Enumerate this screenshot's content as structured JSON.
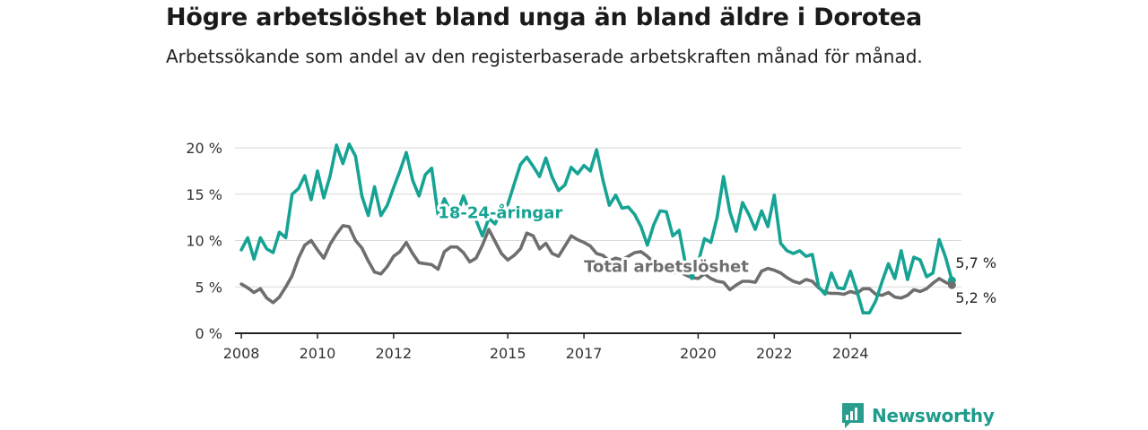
{
  "header": {
    "title": "Högre arbetslöshet bland unga än bland äldre i Dorotea",
    "subtitle": "Arbetssökande som andel av den registerbaserade arbetskraften månad för månad."
  },
  "brand": {
    "name": "Newsworthy",
    "logo_icon": "bar-chart-speech-bubble-icon",
    "color": "#2a9d8f"
  },
  "chart_data": {
    "type": "line",
    "title": "Högre arbetslöshet bland unga än bland äldre i Dorotea",
    "subtitle": "Arbetssökande som andel av den registerbaserade arbetskraften månad för månad.",
    "xlabel": "",
    "ylabel": "",
    "ylim": [
      0,
      20
    ],
    "x_ticks": [
      "2008",
      "2010",
      "2012",
      "2015",
      "2017",
      "2020",
      "2022",
      "2024"
    ],
    "y_ticks": [
      "0 %",
      "5 %",
      "10 %",
      "15 %",
      "20 %"
    ],
    "grid": "horizontal",
    "series": [
      {
        "name": "18-24-åringar",
        "color": "#16a394",
        "end_label": "5,7 %",
        "points": [
          [
            "2008-01",
            9
          ],
          [
            "2008-03",
            10.3
          ],
          [
            "2008-05",
            8
          ],
          [
            "2008-07",
            10.3
          ],
          [
            "2008-09",
            9.1
          ],
          [
            "2008-11",
            8.7
          ],
          [
            "2009-01",
            10.9
          ],
          [
            "2009-03",
            10.3
          ],
          [
            "2009-05",
            15
          ],
          [
            "2009-07",
            15.6
          ],
          [
            "2009-09",
            17
          ],
          [
            "2009-11",
            14.4
          ],
          [
            "2010-01",
            17.5
          ],
          [
            "2010-03",
            14.6
          ],
          [
            "2010-05",
            17
          ],
          [
            "2010-07",
            20.3
          ],
          [
            "2010-09",
            18.3
          ],
          [
            "2010-11",
            20.4
          ],
          [
            "2011-01",
            19.1
          ],
          [
            "2011-03",
            14.8
          ],
          [
            "2011-05",
            12.7
          ],
          [
            "2011-07",
            15.8
          ],
          [
            "2011-09",
            12.7
          ],
          [
            "2011-11",
            13.8
          ],
          [
            "2012-01",
            15.7
          ],
          [
            "2012-03",
            17.5
          ],
          [
            "2012-05",
            19.5
          ],
          [
            "2012-07",
            16.5
          ],
          [
            "2012-09",
            14.8
          ],
          [
            "2012-11",
            17.1
          ],
          [
            "2013-01",
            17.8
          ],
          [
            "2013-03",
            12.8
          ],
          [
            "2013-05",
            14.5
          ],
          [
            "2013-07",
            13.1
          ],
          [
            "2013-09",
            12.8
          ],
          [
            "2013-11",
            14.8
          ],
          [
            "2014-01",
            13
          ],
          [
            "2014-03",
            12.2
          ],
          [
            "2014-05",
            10.5
          ],
          [
            "2014-07",
            12.4
          ],
          [
            "2014-09",
            11.8
          ],
          [
            "2014-11",
            13.2
          ],
          [
            "2015-01",
            13.9
          ],
          [
            "2015-03",
            16.1
          ],
          [
            "2015-05",
            18.2
          ],
          [
            "2015-07",
            19
          ],
          [
            "2015-09",
            18
          ],
          [
            "2015-11",
            16.9
          ],
          [
            "2016-01",
            18.9
          ],
          [
            "2016-03",
            16.8
          ],
          [
            "2016-05",
            15.4
          ],
          [
            "2016-07",
            16
          ],
          [
            "2016-09",
            17.9
          ],
          [
            "2016-11",
            17.2
          ],
          [
            "2017-01",
            18.1
          ],
          [
            "2017-03",
            17.5
          ],
          [
            "2017-05",
            19.8
          ],
          [
            "2017-07",
            16.5
          ],
          [
            "2017-09",
            13.8
          ],
          [
            "2017-11",
            14.9
          ],
          [
            "2018-01",
            13.5
          ],
          [
            "2018-03",
            13.6
          ],
          [
            "2018-05",
            12.8
          ],
          [
            "2018-07",
            11.5
          ],
          [
            "2018-09",
            9.5
          ],
          [
            "2018-11",
            11.7
          ],
          [
            "2019-01",
            13.2
          ],
          [
            "2019-03",
            13.1
          ],
          [
            "2019-05",
            10.5
          ],
          [
            "2019-07",
            11.1
          ],
          [
            "2019-09",
            7.5
          ],
          [
            "2019-11",
            5.9
          ],
          [
            "2020-01",
            7.6
          ],
          [
            "2020-03",
            10.2
          ],
          [
            "2020-05",
            9.8
          ],
          [
            "2020-07",
            12.5
          ],
          [
            "2020-09",
            16.9
          ],
          [
            "2020-11",
            13.1
          ],
          [
            "2021-01",
            11
          ],
          [
            "2021-03",
            14.1
          ],
          [
            "2021-05",
            12.8
          ],
          [
            "2021-07",
            11.2
          ],
          [
            "2021-09",
            13.2
          ],
          [
            "2021-11",
            11.5
          ],
          [
            "2022-01",
            14.9
          ],
          [
            "2022-03",
            9.7
          ],
          [
            "2022-05",
            8.9
          ],
          [
            "2022-07",
            8.6
          ],
          [
            "2022-09",
            8.9
          ],
          [
            "2022-11",
            8.3
          ],
          [
            "2023-01",
            8.5
          ],
          [
            "2023-03",
            5
          ],
          [
            "2023-05",
            4.2
          ],
          [
            "2023-07",
            6.5
          ],
          [
            "2023-09",
            4.9
          ],
          [
            "2023-11",
            4.8
          ],
          [
            "2024-01",
            6.7
          ],
          [
            "2024-03",
            4.6
          ],
          [
            "2024-05",
            2.2
          ],
          [
            "2024-07",
            2.2
          ],
          [
            "2024-09",
            3.5
          ],
          [
            "2024-11",
            5.6
          ],
          [
            "2025-01",
            7.5
          ],
          [
            "2025-03",
            5.9
          ],
          [
            "2025-05",
            8.9
          ],
          [
            "2025-07",
            5.8
          ],
          [
            "2025-09",
            8.2
          ],
          [
            "2025-11",
            7.9
          ],
          [
            "2026-01",
            6.1
          ],
          [
            "2026-03",
            6.5
          ],
          [
            "2026-05",
            10.1
          ],
          [
            "2026-07",
            8.2
          ],
          [
            "2026-09",
            5.7
          ]
        ]
      },
      {
        "name": "Total arbetslöshet",
        "color": "#6e6e6e",
        "end_label": "5,2 %",
        "points": [
          [
            "2008-01",
            5.3
          ],
          [
            "2008-03",
            4.9
          ],
          [
            "2008-05",
            4.4
          ],
          [
            "2008-07",
            4.8
          ],
          [
            "2008-09",
            3.8
          ],
          [
            "2008-11",
            3.3
          ],
          [
            "2009-01",
            3.9
          ],
          [
            "2009-03",
            5
          ],
          [
            "2009-05",
            6.2
          ],
          [
            "2009-07",
            8.1
          ],
          [
            "2009-09",
            9.5
          ],
          [
            "2009-11",
            10
          ],
          [
            "2010-01",
            9
          ],
          [
            "2010-03",
            8.1
          ],
          [
            "2010-05",
            9.6
          ],
          [
            "2010-07",
            10.7
          ],
          [
            "2010-09",
            11.6
          ],
          [
            "2010-11",
            11.5
          ],
          [
            "2011-01",
            10
          ],
          [
            "2011-03",
            9.2
          ],
          [
            "2011-05",
            7.8
          ],
          [
            "2011-07",
            6.6
          ],
          [
            "2011-09",
            6.4
          ],
          [
            "2011-11",
            7.2
          ],
          [
            "2012-01",
            8.3
          ],
          [
            "2012-03",
            8.8
          ],
          [
            "2012-05",
            9.8
          ],
          [
            "2012-07",
            8.6
          ],
          [
            "2012-09",
            7.6
          ],
          [
            "2012-11",
            7.5
          ],
          [
            "2013-01",
            7.4
          ],
          [
            "2013-03",
            6.9
          ],
          [
            "2013-05",
            8.8
          ],
          [
            "2013-07",
            9.3
          ],
          [
            "2013-09",
            9.3
          ],
          [
            "2013-11",
            8.7
          ],
          [
            "2014-01",
            7.7
          ],
          [
            "2014-03",
            8.1
          ],
          [
            "2014-05",
            9.5
          ],
          [
            "2014-07",
            11.2
          ],
          [
            "2014-09",
            9.9
          ],
          [
            "2014-11",
            8.6
          ],
          [
            "2015-01",
            7.9
          ],
          [
            "2015-03",
            8.4
          ],
          [
            "2015-05",
            9.1
          ],
          [
            "2015-07",
            10.8
          ],
          [
            "2015-09",
            10.5
          ],
          [
            "2015-11",
            9.1
          ],
          [
            "2016-01",
            9.7
          ],
          [
            "2016-03",
            8.6
          ],
          [
            "2016-05",
            8.3
          ],
          [
            "2016-07",
            9.4
          ],
          [
            "2016-09",
            10.5
          ],
          [
            "2016-11",
            10.1
          ],
          [
            "2017-01",
            9.8
          ],
          [
            "2017-03",
            9.4
          ],
          [
            "2017-05",
            8.6
          ],
          [
            "2017-07",
            8.4
          ],
          [
            "2017-09",
            7.8
          ],
          [
            "2017-11",
            8.1
          ],
          [
            "2018-01",
            7.9
          ],
          [
            "2018-03",
            8.3
          ],
          [
            "2018-05",
            8.7
          ],
          [
            "2018-07",
            8.8
          ],
          [
            "2018-09",
            8.3
          ],
          [
            "2018-11",
            7.6
          ],
          [
            "2019-01",
            7.1
          ],
          [
            "2019-03",
            6.9
          ],
          [
            "2019-05",
            6.5
          ],
          [
            "2019-07",
            6.7
          ],
          [
            "2019-09",
            6.3
          ],
          [
            "2019-11",
            6
          ],
          [
            "2020-01",
            5.9
          ],
          [
            "2020-03",
            6.4
          ],
          [
            "2020-05",
            5.9
          ],
          [
            "2020-07",
            5.6
          ],
          [
            "2020-09",
            5.5
          ],
          [
            "2020-11",
            4.7
          ],
          [
            "2021-01",
            5.2
          ],
          [
            "2021-03",
            5.6
          ],
          [
            "2021-05",
            5.6
          ],
          [
            "2021-07",
            5.5
          ],
          [
            "2021-09",
            6.7
          ],
          [
            "2021-11",
            7
          ],
          [
            "2022-01",
            6.8
          ],
          [
            "2022-03",
            6.5
          ],
          [
            "2022-05",
            6
          ],
          [
            "2022-07",
            5.6
          ],
          [
            "2022-09",
            5.4
          ],
          [
            "2022-11",
            5.8
          ],
          [
            "2023-01",
            5.6
          ],
          [
            "2023-03",
            4.9
          ],
          [
            "2023-05",
            4.4
          ],
          [
            "2023-07",
            4.3
          ],
          [
            "2023-09",
            4.3
          ],
          [
            "2023-11",
            4.2
          ],
          [
            "2024-01",
            4.5
          ],
          [
            "2024-03",
            4.3
          ],
          [
            "2024-05",
            4.8
          ],
          [
            "2024-07",
            4.8
          ],
          [
            "2024-09",
            4.2
          ],
          [
            "2024-11",
            4.1
          ],
          [
            "2025-01",
            4.4
          ],
          [
            "2025-03",
            3.9
          ],
          [
            "2025-05",
            3.8
          ],
          [
            "2025-07",
            4.1
          ],
          [
            "2025-09",
            4.7
          ],
          [
            "2025-11",
            4.5
          ],
          [
            "2026-01",
            4.8
          ],
          [
            "2026-03",
            5.4
          ],
          [
            "2026-05",
            5.9
          ],
          [
            "2026-07",
            5.5
          ],
          [
            "2026-09",
            5.2
          ]
        ]
      }
    ],
    "inline_labels": [
      {
        "series": "18-24-åringar",
        "text": "18-24-åringar",
        "at": [
          "2013-03",
          12.4
        ]
      },
      {
        "series": "Total arbetslöshet",
        "text": "Total arbetslöshet",
        "at": [
          "2017-01",
          6.6
        ]
      }
    ]
  }
}
